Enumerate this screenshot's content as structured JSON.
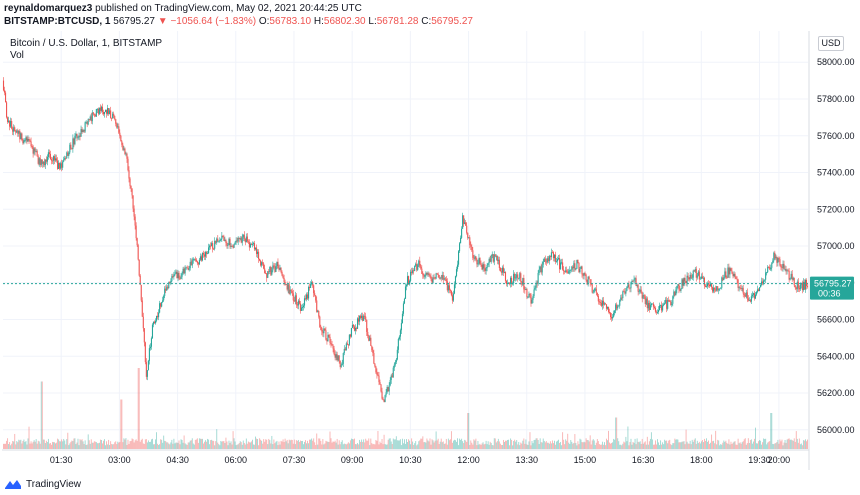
{
  "header": {
    "publisher": "reynaldomarquez3",
    "published_text": "published on TradingView.com, May 02, 2021 20:44:25 UTC",
    "symbol": "BITSTAMP:BTCUSD, 1",
    "last": "56795.27",
    "change": "▼ −1056.64 (−1.83%)",
    "o_label": "O:",
    "o_value": "56783.10",
    "h_label": "H:",
    "h_value": "56802.30",
    "l_label": "L:",
    "l_value": "56781.28",
    "c_label": "C:",
    "c_value": "56795.27"
  },
  "pane": {
    "title": "Bitcoin / U.S. Dollar, 1, BITSTAMP",
    "volume_label": "Vol",
    "currency_button": "USD",
    "price_tag": "56795.27",
    "countdown": "00:36"
  },
  "footer": {
    "brand": "TradingView"
  },
  "colors": {
    "up": "#26a69a",
    "down": "#ef5350",
    "grid": "#f0f3fa",
    "text": "#131722"
  },
  "chart_data": {
    "type": "candlestick",
    "y_axis_ticks": [
      "58000.00",
      "57800.00",
      "57600.00",
      "57400.00",
      "57200.00",
      "57000.00",
      "56800.00",
      "56600.00",
      "56400.00",
      "56200.00",
      "56000.00"
    ],
    "y_range": [
      55890,
      58170
    ],
    "x_axis_ticks": [
      "01:30",
      "03:00",
      "04:30",
      "06:00",
      "07:30",
      "09:00",
      "10:30",
      "12:00",
      "13:30",
      "15:00",
      "16:30",
      "18:00",
      "19:30",
      "20:00"
    ],
    "x_range_hours": [
      0,
      20.75
    ],
    "last_price": 56795.27,
    "anchors": [
      [
        0.0,
        57900
      ],
      [
        0.1,
        57700
      ],
      [
        0.3,
        57620
      ],
      [
        0.7,
        57550
      ],
      [
        1.0,
        57440
      ],
      [
        1.2,
        57500
      ],
      [
        1.5,
        57420
      ],
      [
        1.8,
        57560
      ],
      [
        2.0,
        57620
      ],
      [
        2.3,
        57700
      ],
      [
        2.5,
        57740
      ],
      [
        2.8,
        57720
      ],
      [
        3.0,
        57620
      ],
      [
        3.2,
        57450
      ],
      [
        3.4,
        57150
      ],
      [
        3.55,
        56750
      ],
      [
        3.7,
        56300
      ],
      [
        3.85,
        56550
      ],
      [
        4.1,
        56700
      ],
      [
        4.3,
        56820
      ],
      [
        4.6,
        56850
      ],
      [
        5.0,
        56920
      ],
      [
        5.4,
        57000
      ],
      [
        5.6,
        57060
      ],
      [
        5.9,
        57000
      ],
      [
        6.2,
        57050
      ],
      [
        6.5,
        56980
      ],
      [
        6.8,
        56850
      ],
      [
        7.1,
        56900
      ],
      [
        7.4,
        56750
      ],
      [
        7.7,
        56650
      ],
      [
        7.95,
        56800
      ],
      [
        8.2,
        56550
      ],
      [
        8.5,
        56450
      ],
      [
        8.7,
        56350
      ],
      [
        9.0,
        56550
      ],
      [
        9.3,
        56620
      ],
      [
        9.6,
        56350
      ],
      [
        9.8,
        56150
      ],
      [
        10.1,
        56350
      ],
      [
        10.4,
        56800
      ],
      [
        10.7,
        56900
      ],
      [
        11.0,
        56820
      ],
      [
        11.3,
        56850
      ],
      [
        11.6,
        56700
      ],
      [
        11.85,
        57150
      ],
      [
        12.1,
        56950
      ],
      [
        12.4,
        56880
      ],
      [
        12.7,
        56950
      ],
      [
        13.0,
        56800
      ],
      [
        13.3,
        56850
      ],
      [
        13.6,
        56700
      ],
      [
        13.9,
        56900
      ],
      [
        14.2,
        56950
      ],
      [
        14.5,
        56850
      ],
      [
        14.8,
        56900
      ],
      [
        15.1,
        56800
      ],
      [
        15.4,
        56700
      ],
      [
        15.7,
        56620
      ],
      [
        16.0,
        56750
      ],
      [
        16.3,
        56800
      ],
      [
        16.6,
        56680
      ],
      [
        16.9,
        56650
      ],
      [
        17.2,
        56700
      ],
      [
        17.5,
        56800
      ],
      [
        17.8,
        56860
      ],
      [
        18.1,
        56800
      ],
      [
        18.4,
        56760
      ],
      [
        18.7,
        56870
      ],
      [
        19.0,
        56780
      ],
      [
        19.3,
        56700
      ],
      [
        19.6,
        56820
      ],
      [
        19.9,
        56950
      ],
      [
        20.2,
        56850
      ],
      [
        20.5,
        56780
      ],
      [
        20.75,
        56795
      ]
    ],
    "candles_per_hour": 38,
    "volume_axis_max": 1.0,
    "volume_spikes": [
      [
        3.05,
        0.55
      ],
      [
        3.5,
        0.9
      ],
      [
        1.0,
        0.75
      ],
      [
        12.0,
        0.4
      ],
      [
        15.8,
        0.35
      ],
      [
        19.8,
        0.4
      ]
    ]
  }
}
